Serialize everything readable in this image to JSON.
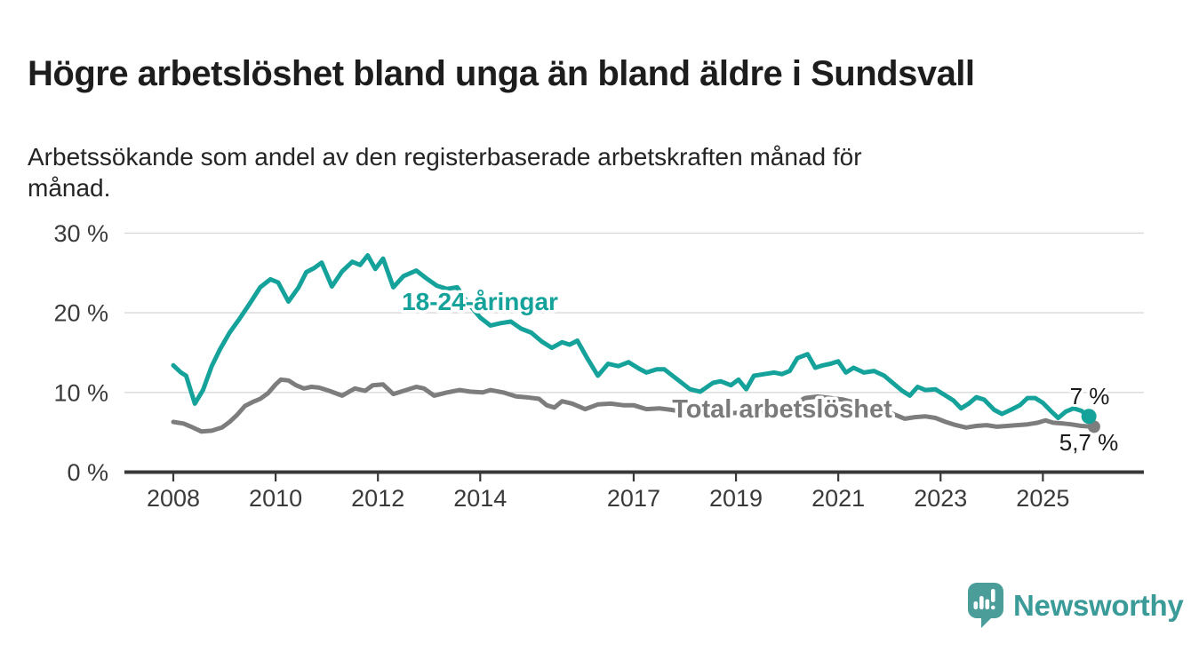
{
  "header": {
    "title": "Högre arbetslöshet bland unga än bland äldre i Sundsvall",
    "subtitle_lines": [
      "Arbetssökande som andel av den registerbaserade arbetskraften månad för",
      "månad."
    ]
  },
  "chart_data": {
    "type": "line",
    "unit": "%",
    "grid": "horizontal",
    "x_axis": {
      "tick_years": [
        2008,
        2010,
        2012,
        2014,
        2017,
        2019,
        2021,
        2023,
        2025
      ],
      "range": [
        2007.1,
        2026.9
      ]
    },
    "y_axis": {
      "tick_values": [
        0,
        10,
        20,
        30
      ],
      "tick_labels": [
        "0 %",
        "10 %",
        "20 %",
        "30 %"
      ],
      "range": [
        0,
        32
      ]
    },
    "series": [
      {
        "name": "18-24-åringar",
        "color": "#14a29b",
        "end_label": "7 %",
        "end_value": 7.0,
        "points": [
          [
            2008.0,
            13.4
          ],
          [
            2008.15,
            12.5
          ],
          [
            2008.25,
            12.1
          ],
          [
            2008.42,
            8.6
          ],
          [
            2008.58,
            10.3
          ],
          [
            2008.75,
            13.3
          ],
          [
            2008.92,
            15.5
          ],
          [
            2009.1,
            17.5
          ],
          [
            2009.3,
            19.3
          ],
          [
            2009.5,
            21.2
          ],
          [
            2009.7,
            23.2
          ],
          [
            2009.9,
            24.2
          ],
          [
            2010.05,
            23.8
          ],
          [
            2010.25,
            21.4
          ],
          [
            2010.45,
            23.2
          ],
          [
            2010.6,
            25.1
          ],
          [
            2010.75,
            25.6
          ],
          [
            2010.9,
            26.3
          ],
          [
            2011.1,
            23.3
          ],
          [
            2011.3,
            25.2
          ],
          [
            2011.5,
            26.4
          ],
          [
            2011.65,
            26.0
          ],
          [
            2011.8,
            27.2
          ],
          [
            2011.95,
            25.5
          ],
          [
            2012.1,
            26.8
          ],
          [
            2012.3,
            23.2
          ],
          [
            2012.5,
            24.6
          ],
          [
            2012.75,
            25.3
          ],
          [
            2012.95,
            24.3
          ],
          [
            2013.15,
            23.4
          ],
          [
            2013.35,
            23.0
          ],
          [
            2013.55,
            23.2
          ],
          [
            2013.75,
            21.3
          ],
          [
            2014.0,
            19.4
          ],
          [
            2014.2,
            18.4
          ],
          [
            2014.4,
            18.7
          ],
          [
            2014.6,
            18.9
          ],
          [
            2014.8,
            18.0
          ],
          [
            2015.0,
            17.5
          ],
          [
            2015.2,
            16.4
          ],
          [
            2015.4,
            15.6
          ],
          [
            2015.6,
            16.3
          ],
          [
            2015.75,
            16.0
          ],
          [
            2015.9,
            16.5
          ],
          [
            2016.1,
            14.2
          ],
          [
            2016.3,
            12.1
          ],
          [
            2016.5,
            13.6
          ],
          [
            2016.7,
            13.3
          ],
          [
            2016.9,
            13.8
          ],
          [
            2017.1,
            13.0
          ],
          [
            2017.25,
            12.5
          ],
          [
            2017.45,
            12.9
          ],
          [
            2017.6,
            12.9
          ],
          [
            2017.9,
            11.4
          ],
          [
            2018.1,
            10.4
          ],
          [
            2018.3,
            10.1
          ],
          [
            2018.55,
            11.2
          ],
          [
            2018.7,
            11.4
          ],
          [
            2018.9,
            10.9
          ],
          [
            2019.05,
            11.6
          ],
          [
            2019.2,
            10.4
          ],
          [
            2019.35,
            12.1
          ],
          [
            2019.55,
            12.3
          ],
          [
            2019.75,
            12.5
          ],
          [
            2019.9,
            12.3
          ],
          [
            2020.05,
            12.7
          ],
          [
            2020.2,
            14.3
          ],
          [
            2020.4,
            14.8
          ],
          [
            2020.55,
            13.1
          ],
          [
            2020.7,
            13.4
          ],
          [
            2020.85,
            13.6
          ],
          [
            2021.0,
            13.9
          ],
          [
            2021.15,
            12.5
          ],
          [
            2021.3,
            13.1
          ],
          [
            2021.5,
            12.5
          ],
          [
            2021.7,
            12.7
          ],
          [
            2021.9,
            12.1
          ],
          [
            2022.1,
            11.0
          ],
          [
            2022.25,
            10.2
          ],
          [
            2022.4,
            9.6
          ],
          [
            2022.55,
            10.7
          ],
          [
            2022.7,
            10.3
          ],
          [
            2022.9,
            10.4
          ],
          [
            2023.1,
            9.6
          ],
          [
            2023.25,
            9.0
          ],
          [
            2023.4,
            8.0
          ],
          [
            2023.55,
            8.6
          ],
          [
            2023.7,
            9.4
          ],
          [
            2023.85,
            9.1
          ],
          [
            2024.05,
            7.8
          ],
          [
            2024.2,
            7.3
          ],
          [
            2024.4,
            7.9
          ],
          [
            2024.55,
            8.4
          ],
          [
            2024.7,
            9.3
          ],
          [
            2024.85,
            9.3
          ],
          [
            2025.0,
            8.7
          ],
          [
            2025.15,
            7.7
          ],
          [
            2025.3,
            6.8
          ],
          [
            2025.45,
            7.6
          ],
          [
            2025.6,
            8.0
          ],
          [
            2025.75,
            7.7
          ],
          [
            2025.9,
            7.0
          ]
        ]
      },
      {
        "name": "Total arbetslöshet",
        "color": "#7d7d7d",
        "end_label": "5,7 %",
        "end_value": 5.7,
        "points": [
          [
            2008.0,
            6.3
          ],
          [
            2008.2,
            6.1
          ],
          [
            2008.35,
            5.7
          ],
          [
            2008.55,
            5.1
          ],
          [
            2008.75,
            5.2
          ],
          [
            2008.95,
            5.6
          ],
          [
            2009.1,
            6.3
          ],
          [
            2009.25,
            7.2
          ],
          [
            2009.4,
            8.3
          ],
          [
            2009.55,
            8.8
          ],
          [
            2009.7,
            9.2
          ],
          [
            2009.85,
            9.9
          ],
          [
            2010.0,
            11.0
          ],
          [
            2010.1,
            11.6
          ],
          [
            2010.25,
            11.5
          ],
          [
            2010.4,
            10.9
          ],
          [
            2010.55,
            10.5
          ],
          [
            2010.7,
            10.7
          ],
          [
            2010.85,
            10.6
          ],
          [
            2011.05,
            10.2
          ],
          [
            2011.3,
            9.6
          ],
          [
            2011.55,
            10.5
          ],
          [
            2011.75,
            10.2
          ],
          [
            2011.9,
            10.9
          ],
          [
            2012.1,
            11.0
          ],
          [
            2012.3,
            9.8
          ],
          [
            2012.55,
            10.3
          ],
          [
            2012.75,
            10.7
          ],
          [
            2012.9,
            10.5
          ],
          [
            2013.1,
            9.6
          ],
          [
            2013.35,
            10.0
          ],
          [
            2013.6,
            10.3
          ],
          [
            2013.8,
            10.1
          ],
          [
            2014.05,
            10.0
          ],
          [
            2014.2,
            10.3
          ],
          [
            2014.45,
            10.0
          ],
          [
            2014.7,
            9.5
          ],
          [
            2014.9,
            9.4
          ],
          [
            2015.15,
            9.2
          ],
          [
            2015.3,
            8.4
          ],
          [
            2015.45,
            8.1
          ],
          [
            2015.6,
            8.9
          ],
          [
            2015.8,
            8.6
          ],
          [
            2016.05,
            7.9
          ],
          [
            2016.3,
            8.5
          ],
          [
            2016.55,
            8.6
          ],
          [
            2016.8,
            8.4
          ],
          [
            2017.0,
            8.4
          ],
          [
            2017.25,
            7.9
          ],
          [
            2017.5,
            8.0
          ],
          [
            2017.75,
            7.8
          ],
          [
            2018.0,
            7.5
          ],
          [
            2018.3,
            7.3
          ],
          [
            2018.6,
            7.5
          ],
          [
            2018.9,
            7.4
          ],
          [
            2019.2,
            7.5
          ],
          [
            2019.5,
            7.7
          ],
          [
            2019.8,
            7.9
          ],
          [
            2020.1,
            8.4
          ],
          [
            2020.35,
            9.3
          ],
          [
            2020.6,
            9.5
          ],
          [
            2020.85,
            9.3
          ],
          [
            2021.1,
            9.1
          ],
          [
            2021.4,
            8.6
          ],
          [
            2021.7,
            8.1
          ],
          [
            2021.95,
            7.6
          ],
          [
            2022.15,
            7.1
          ],
          [
            2022.3,
            6.7
          ],
          [
            2022.5,
            6.9
          ],
          [
            2022.7,
            7.0
          ],
          [
            2022.9,
            6.8
          ],
          [
            2023.1,
            6.3
          ],
          [
            2023.3,
            5.9
          ],
          [
            2023.5,
            5.6
          ],
          [
            2023.7,
            5.8
          ],
          [
            2023.9,
            5.9
          ],
          [
            2024.1,
            5.7
          ],
          [
            2024.3,
            5.8
          ],
          [
            2024.5,
            5.9
          ],
          [
            2024.7,
            6.0
          ],
          [
            2024.9,
            6.2
          ],
          [
            2025.05,
            6.5
          ],
          [
            2025.2,
            6.2
          ],
          [
            2025.4,
            6.1
          ],
          [
            2025.55,
            6.0
          ],
          [
            2025.75,
            5.8
          ],
          [
            2026.0,
            5.7
          ]
        ]
      }
    ]
  },
  "branding": {
    "name": "Newsworthy",
    "logo_icon": "bar-chart-speech-bubble",
    "color": "#3a9b98",
    "icon_color": "#4a9d99"
  }
}
